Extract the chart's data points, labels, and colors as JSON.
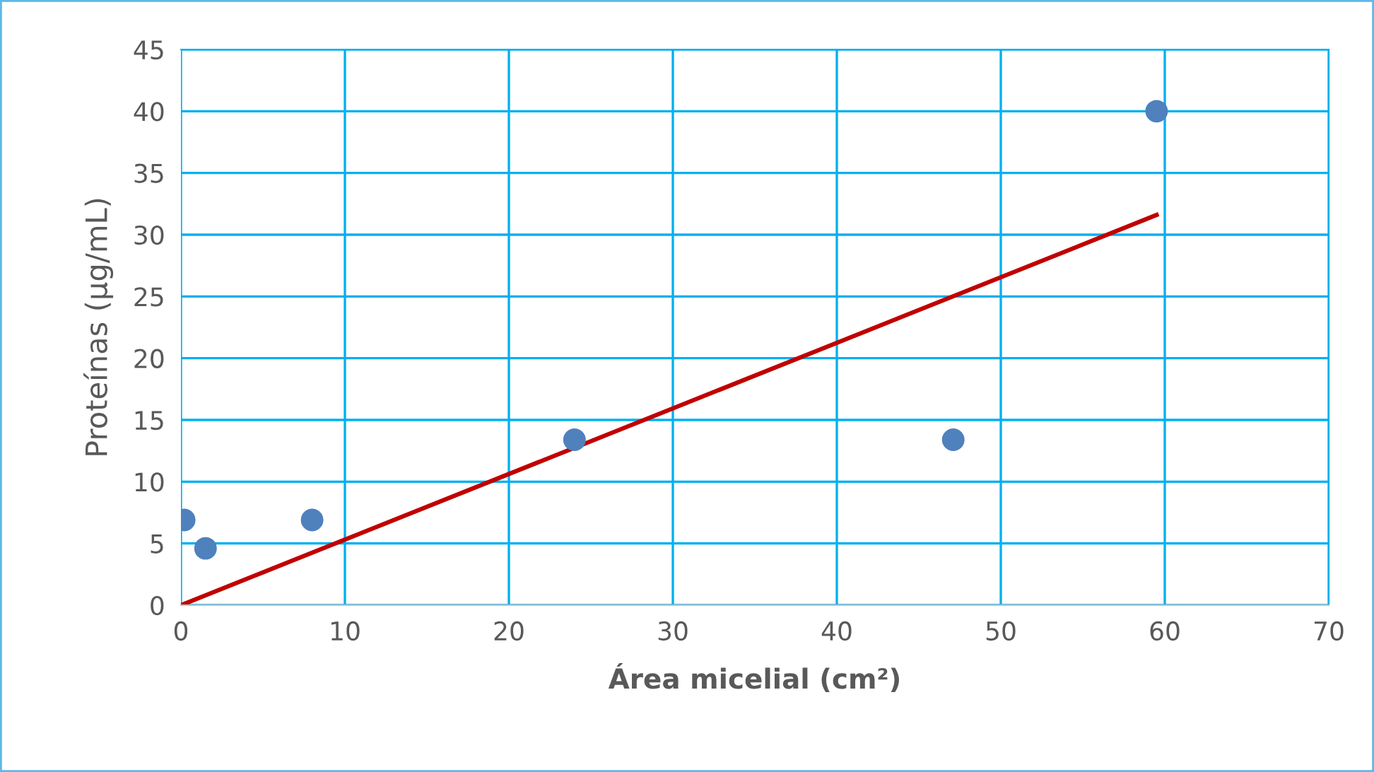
{
  "chart_data": {
    "type": "scatter",
    "xlabel": "Área micelial (cm²)",
    "ylabel": "Proteínas (µg/mL)",
    "series": [
      {
        "color": "#4f81bd",
        "x": [
          0.2,
          1.5,
          8.0,
          24.0,
          47.1,
          59.5
        ],
        "values": [
          6.9,
          4.6,
          6.9,
          13.4,
          13.4,
          40.0
        ],
        "marker": "circle"
      },
      {
        "type": "line",
        "color": "#c00000",
        "x": [
          0,
          59.5
        ],
        "values": [
          0,
          31.6
        ],
        "marker": "none",
        "line_style": "solid"
      }
    ],
    "xlim": [
      0,
      70
    ],
    "xticks": [
      0,
      10,
      20,
      30,
      40,
      50,
      60,
      70
    ],
    "ylim": [
      0,
      45
    ],
    "yticks": [
      0,
      5,
      10,
      15,
      20,
      25,
      30,
      35,
      40,
      45
    ],
    "grid": true,
    "legend": false
  }
}
